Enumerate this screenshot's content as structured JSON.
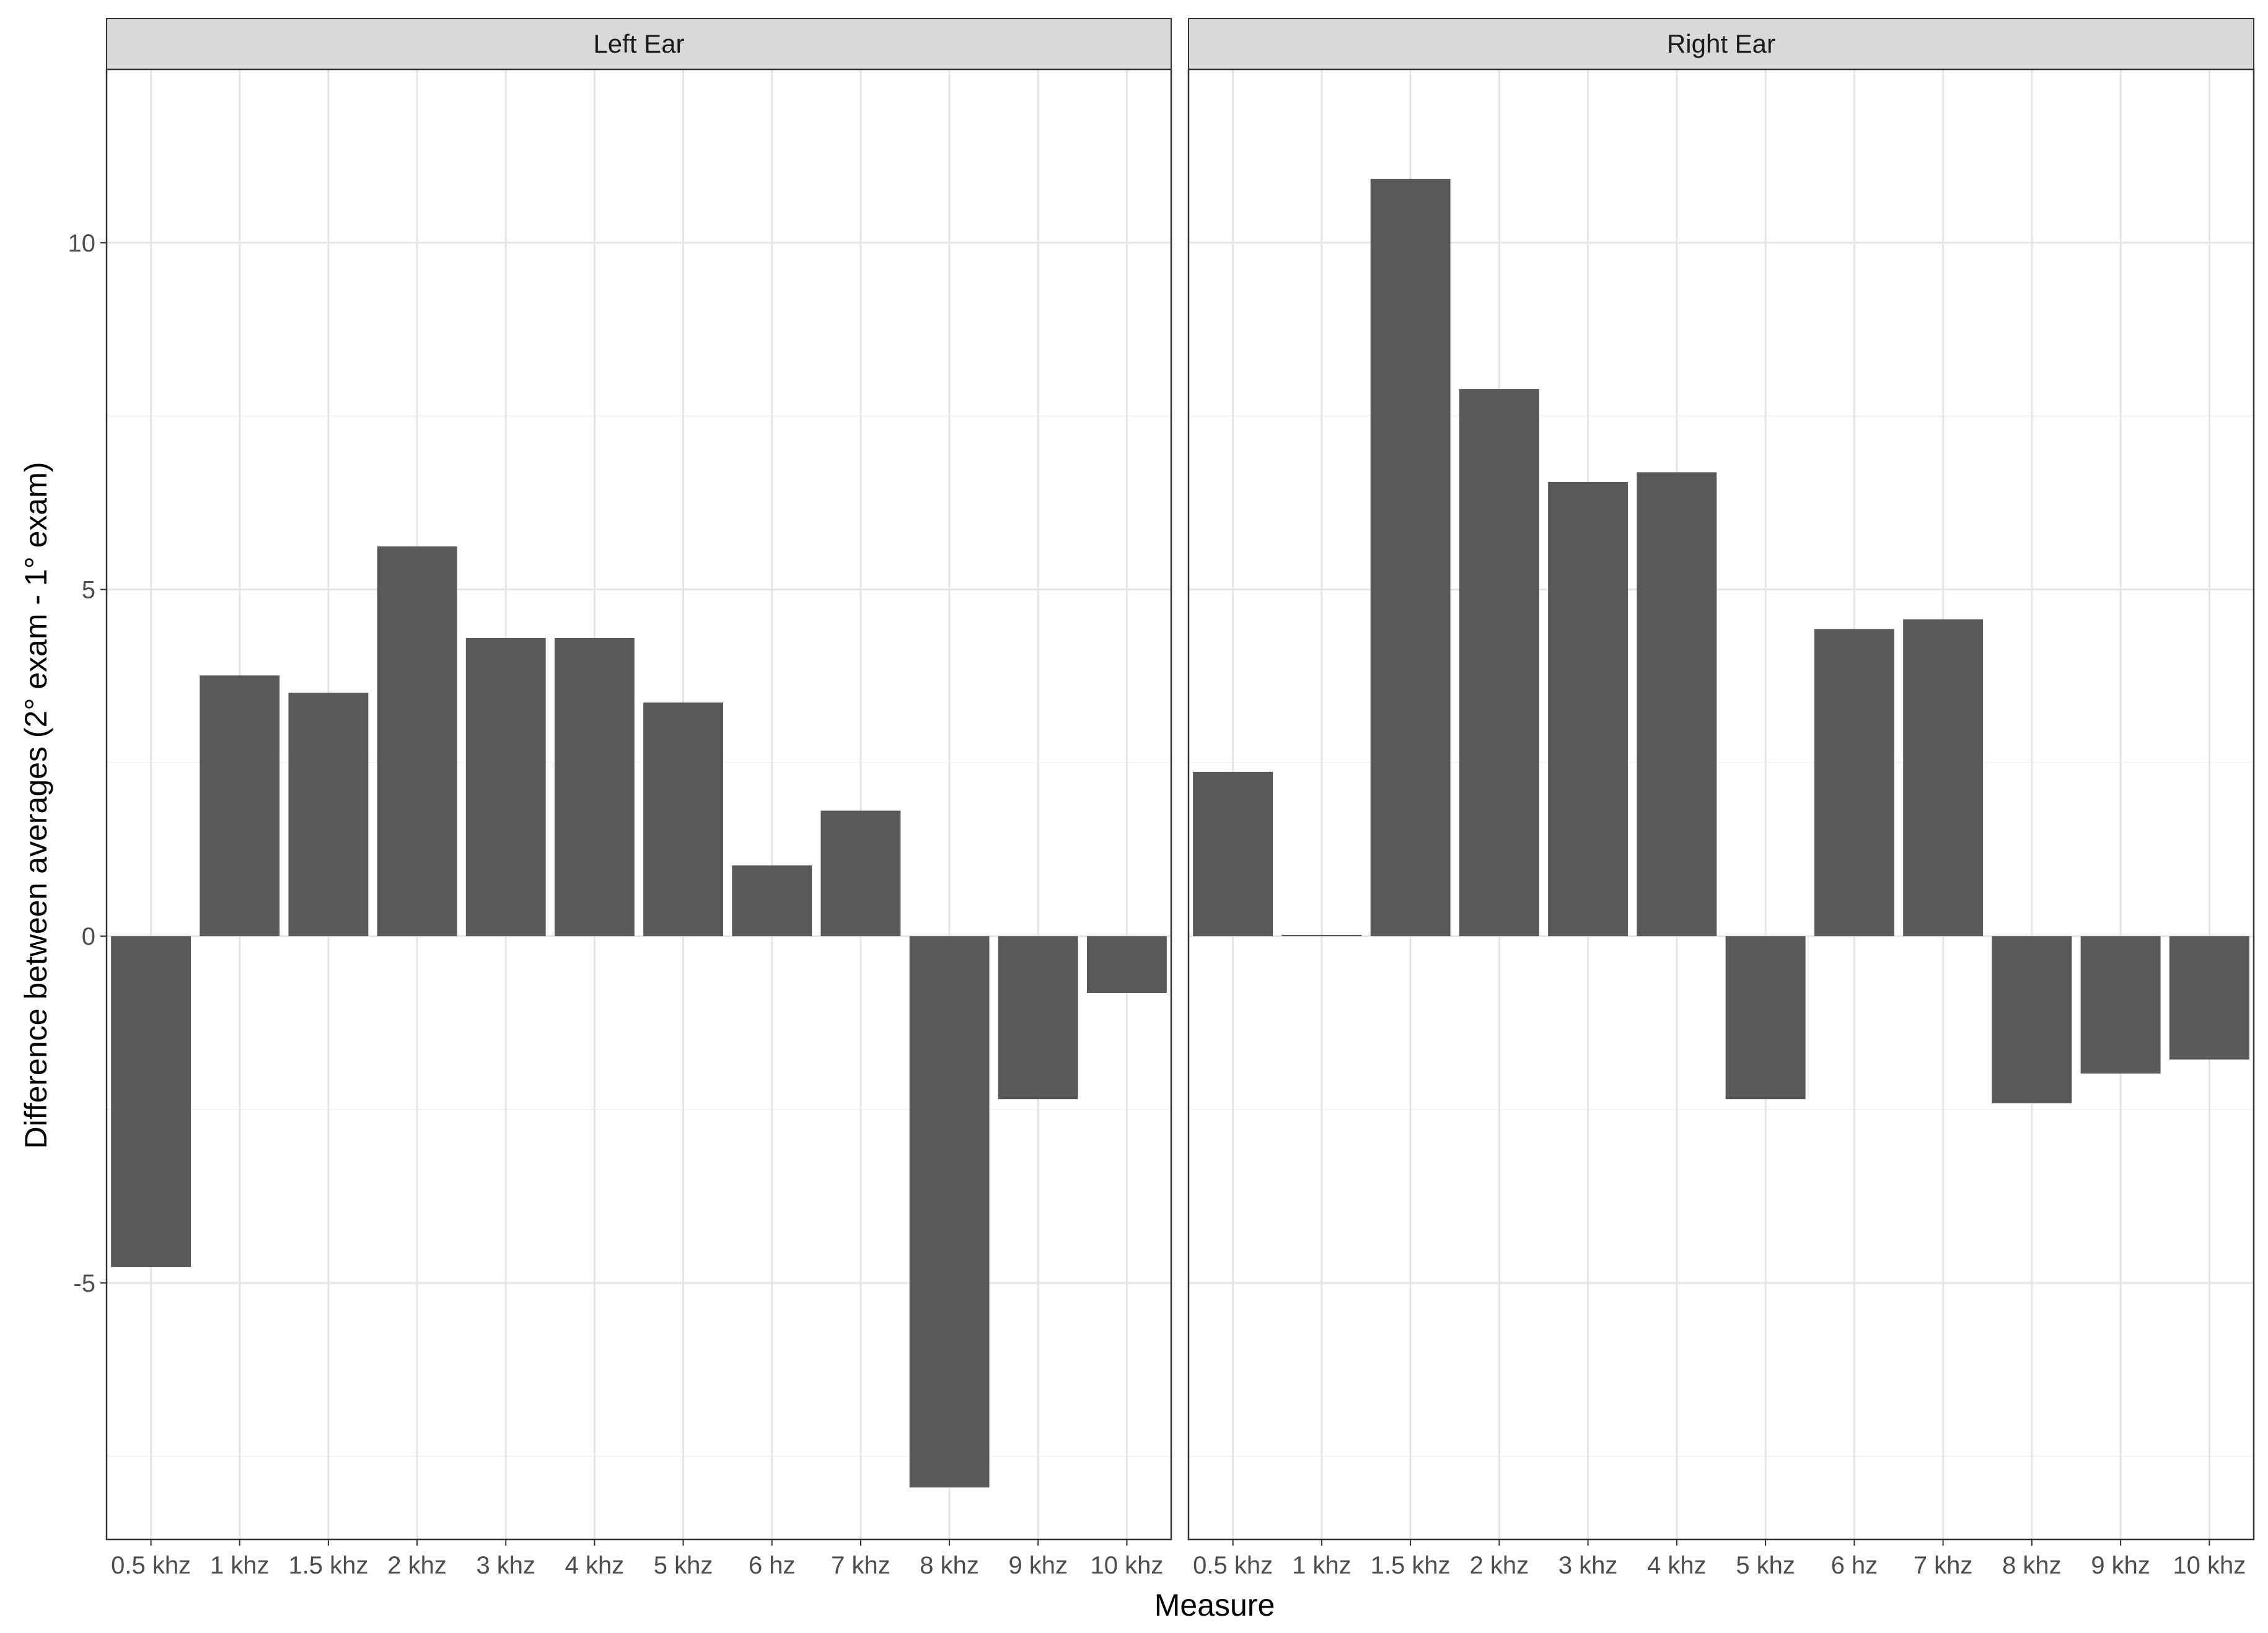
{
  "chart_data": {
    "type": "bar",
    "xlabel": "Measure",
    "ylabel": "Difference between averages (2° exam - 1° exam)",
    "ylim": [
      -8.7,
      12.5
    ],
    "y_ticks": [
      -5,
      0,
      5,
      10
    ],
    "y_tick_labels": [
      "-5",
      "0",
      "5",
      "10"
    ],
    "grid": true,
    "bar_color": "#595959",
    "panels": [
      {
        "title": "Left Ear",
        "categories": [
          "0.5 khz",
          "1 khz",
          "1.5 khz",
          "2 khz",
          "3 khz",
          "4 khz",
          "5 khz",
          "6 hz",
          "7 khz",
          "8 khz",
          "9 khz",
          "10 khz"
        ],
        "values": [
          -4.77,
          3.76,
          3.51,
          5.62,
          4.3,
          4.3,
          3.37,
          1.02,
          1.81,
          -7.95,
          -2.35,
          -0.82
        ]
      },
      {
        "title": "Right Ear",
        "categories": [
          "0.5 khz",
          "1 khz",
          "1.5 khz",
          "2 khz",
          "3 khz",
          "4 khz",
          "5 khz",
          "6 hz",
          "7 khz",
          "8 khz",
          "9 khz",
          "10 khz"
        ],
        "values": [
          2.37,
          0.02,
          10.92,
          7.89,
          6.55,
          6.69,
          -2.35,
          4.43,
          4.57,
          -2.41,
          -1.98,
          -1.78
        ]
      }
    ]
  }
}
